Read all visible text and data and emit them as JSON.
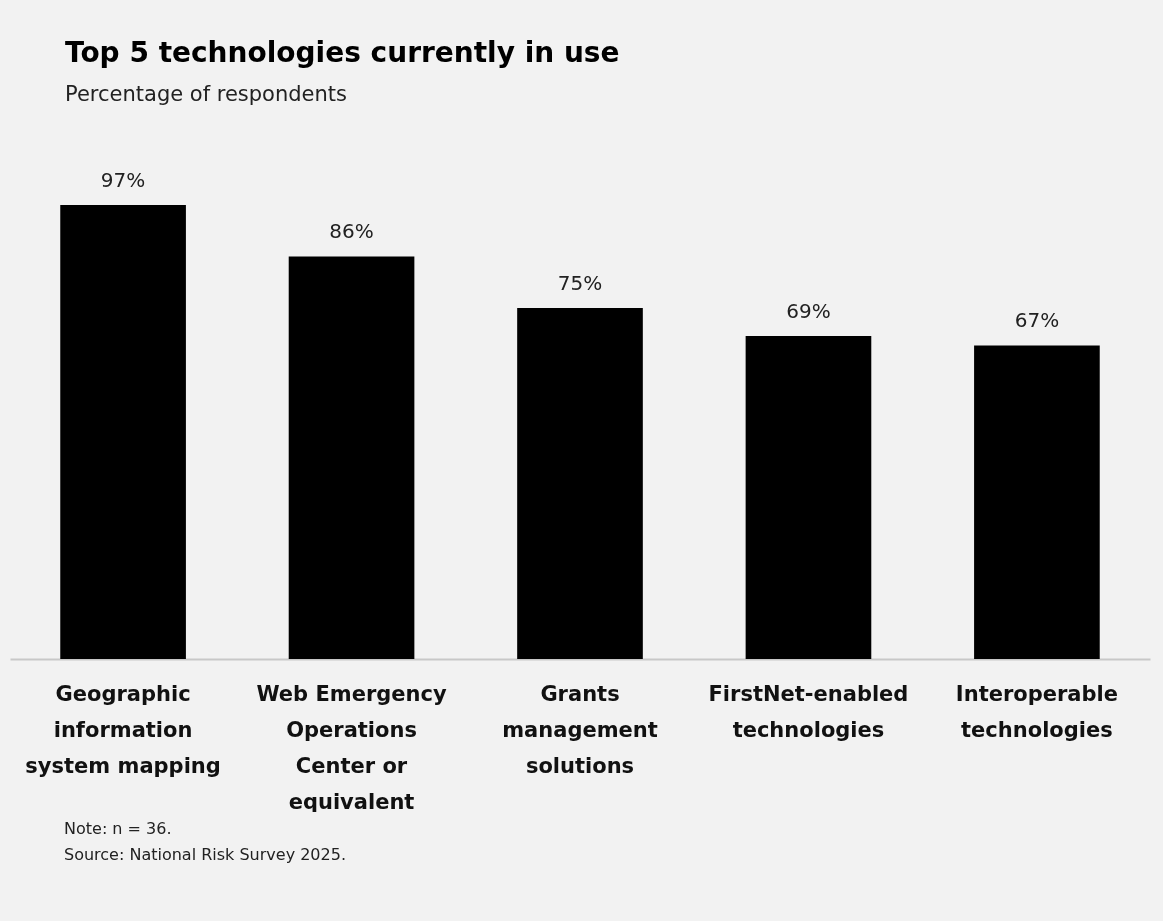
{
  "chart_data": {
    "type": "bar",
    "title": "Top 5 technologies currently in use",
    "subtitle": "Percentage of respondents",
    "categories": [
      "Geographic information system mapping",
      "Web Emergency Operations Center or equivalent",
      "Grants management solutions",
      "FirstNet-enabled technologies",
      "Interoperable technologies"
    ],
    "values": [
      97,
      86,
      75,
      69,
      67
    ],
    "value_labels": [
      "97%",
      "86%",
      "75%",
      "69%",
      "67%"
    ],
    "color": "#000000",
    "annotations": [
      "Note: n = 36.",
      "Source: National Risk Survey 2025."
    ]
  }
}
